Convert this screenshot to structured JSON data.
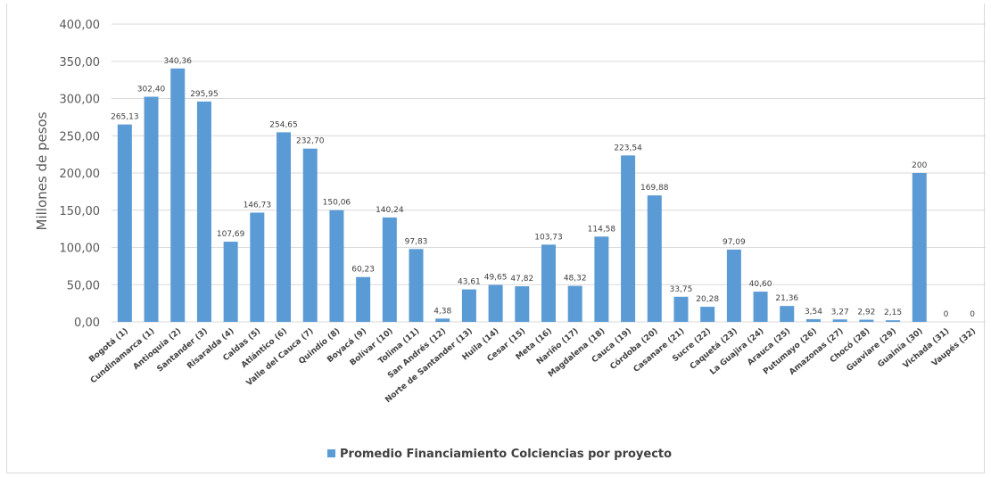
{
  "chart_data": {
    "type": "bar",
    "title": "",
    "ylabel": "Millones de pesos",
    "xlabel": "",
    "ylim": [
      0,
      400
    ],
    "y_ticks": [
      "0,00",
      "50,00",
      "100,00",
      "150,00",
      "200,00",
      "250,00",
      "300,00",
      "350,00",
      "400,00"
    ],
    "grid": true,
    "legend_position": "bottom",
    "bar_color": "#5b9bd5",
    "categories": [
      "Bogotá (1)",
      "Cundinamarca (1)",
      "Antioquia (2)",
      "Santander (3)",
      "Risaralda (4)",
      "Caldas (5)",
      "Atlántico (6)",
      "Valle del Cauca (7)",
      "Quindío (8)",
      "Boyacá (9)",
      "Bolívar (10)",
      "Tolima (11)",
      "San Andrés (12)",
      "Norte de Santander (13)",
      "Huila (14)",
      "Cesar (15)",
      "Meta (16)",
      "Nariño (17)",
      "Magdalena (18)",
      "Cauca (19)",
      "Córdoba (20)",
      "Casanare (21)",
      "Sucre (22)",
      "Caquetá (23)",
      "La Guajira (24)",
      "Arauca (25)",
      "Putumayo (26)",
      "Amazonas (27)",
      "Chocó (28)",
      "Guaviare (29)",
      "Guainía (30)",
      "Vichada (31)",
      "Vaupés (32)"
    ],
    "series": [
      {
        "name": "Promedio Financiamiento Colciencias por proyecto",
        "values": [
          265.13,
          302.4,
          340.36,
          295.95,
          107.69,
          146.73,
          254.65,
          232.7,
          150.06,
          60.23,
          140.24,
          97.83,
          4.38,
          43.61,
          49.65,
          47.82,
          103.73,
          48.32,
          114.58,
          223.54,
          169.88,
          33.75,
          20.28,
          97.09,
          40.6,
          21.36,
          3.54,
          3.27,
          2.92,
          2.15,
          200,
          0,
          0
        ],
        "labels": [
          "265,13",
          "302,40",
          "340,36",
          "295,95",
          "107,69",
          "146,73",
          "254,65",
          "232,70",
          "150,06",
          "60,23",
          "140,24",
          "97,83",
          "4,38",
          "43,61",
          "49,65",
          "47,82",
          "103,73",
          "48,32",
          "114,58",
          "223,54",
          "169,88",
          "33,75",
          "20,28",
          "97,09",
          "40,60",
          "21,36",
          "3,54",
          "3,27",
          "2,92",
          "2,15",
          "200",
          "0",
          "0"
        ]
      }
    ]
  }
}
